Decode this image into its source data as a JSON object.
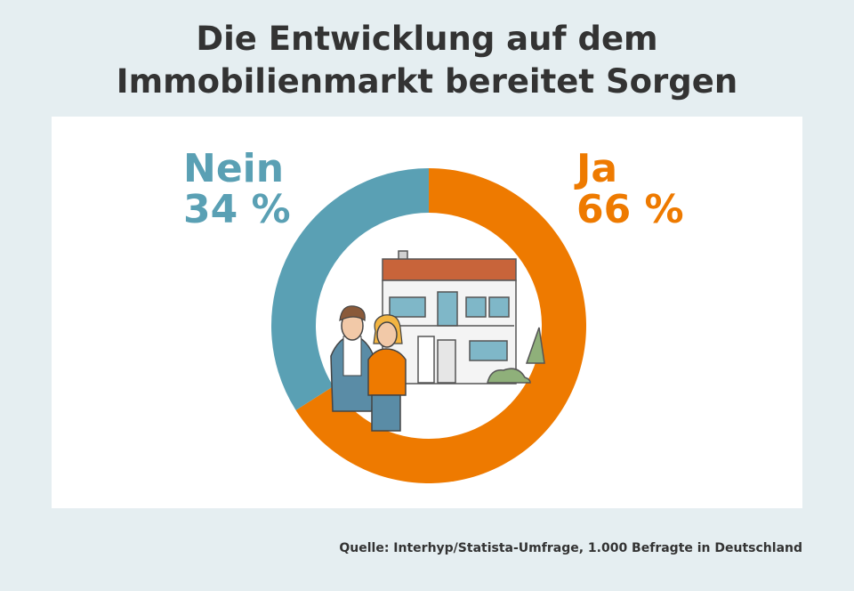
{
  "title_line1": "Die Entwicklung auf dem",
  "title_line2": "Immobilienmarkt bereitet Sorgen",
  "source": "Quelle: Interhyp/Statista-Umfrage, 1.000 Befragte in Deutschland",
  "chart_data": {
    "type": "pie",
    "title": "Die Entwicklung auf dem Immobilienmarkt bereitet Sorgen",
    "categories": [
      "Ja",
      "Nein"
    ],
    "values": [
      66,
      34
    ],
    "labels": [
      "66 %",
      "34 %"
    ],
    "colors": [
      "#ee7a00",
      "#5aa0b4"
    ]
  }
}
